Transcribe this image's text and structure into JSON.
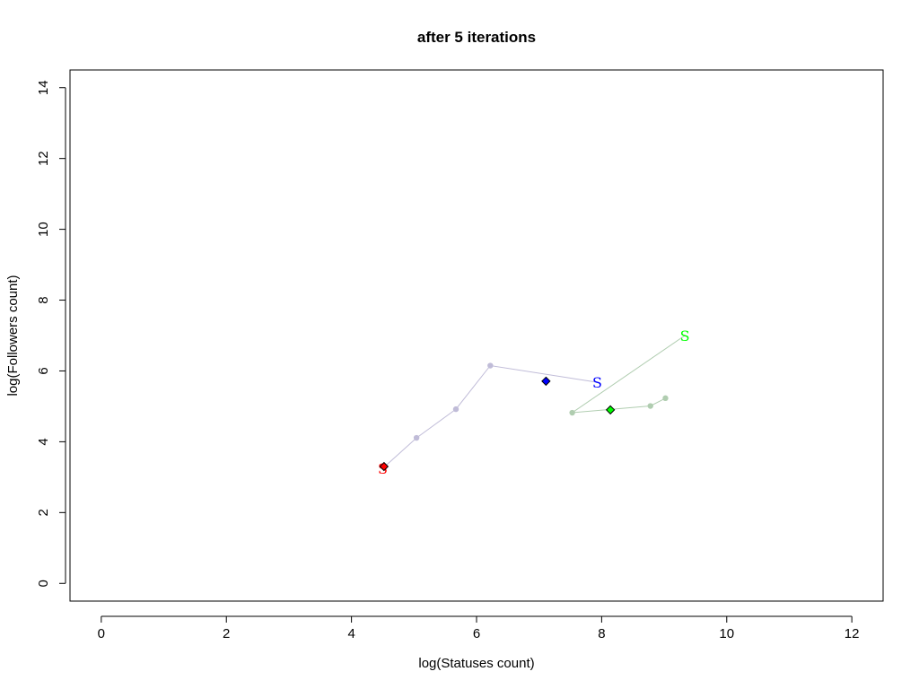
{
  "chart_data": {
    "type": "scatter",
    "title": "after 5 iterations",
    "xlabel": "log(Statuses count)",
    "ylabel": "log(Followers count)",
    "xlim": [
      -0.5,
      12.5
    ],
    "ylim": [
      -0.5,
      14.5
    ],
    "xticks": [
      0,
      2,
      4,
      6,
      8,
      10,
      12
    ],
    "yticks": [
      0,
      2,
      4,
      6,
      8,
      10,
      12,
      14
    ],
    "grid": false,
    "series": [
      {
        "color": "#0000ff",
        "trail_color": "#c0bcd8",
        "start": {
          "x": 7.93,
          "y": 5.68,
          "symbol": "S"
        },
        "trail": [
          [
            7.93,
            5.68
          ],
          [
            6.22,
            6.15
          ],
          [
            5.67,
            4.92
          ],
          [
            5.04,
            4.11
          ],
          [
            4.52,
            3.28
          ]
        ],
        "current": {
          "x": 7.11,
          "y": 5.71
        }
      },
      {
        "color": "#00ff00",
        "trail_color": "#b0cdb0",
        "start": {
          "x": 9.33,
          "y": 7.0,
          "symbol": "S"
        },
        "trail": [
          [
            9.33,
            7.0
          ],
          [
            7.53,
            4.82
          ],
          [
            8.78,
            5.01
          ],
          [
            9.02,
            5.23
          ]
        ],
        "current": {
          "x": 8.14,
          "y": 4.9
        }
      },
      {
        "color": "#ff0000",
        "trail_color": "#d8b8b8",
        "start": {
          "x": 4.5,
          "y": 3.25,
          "symbol": "S"
        },
        "trail": [],
        "current": {
          "x": 4.52,
          "y": 3.3
        }
      }
    ]
  }
}
